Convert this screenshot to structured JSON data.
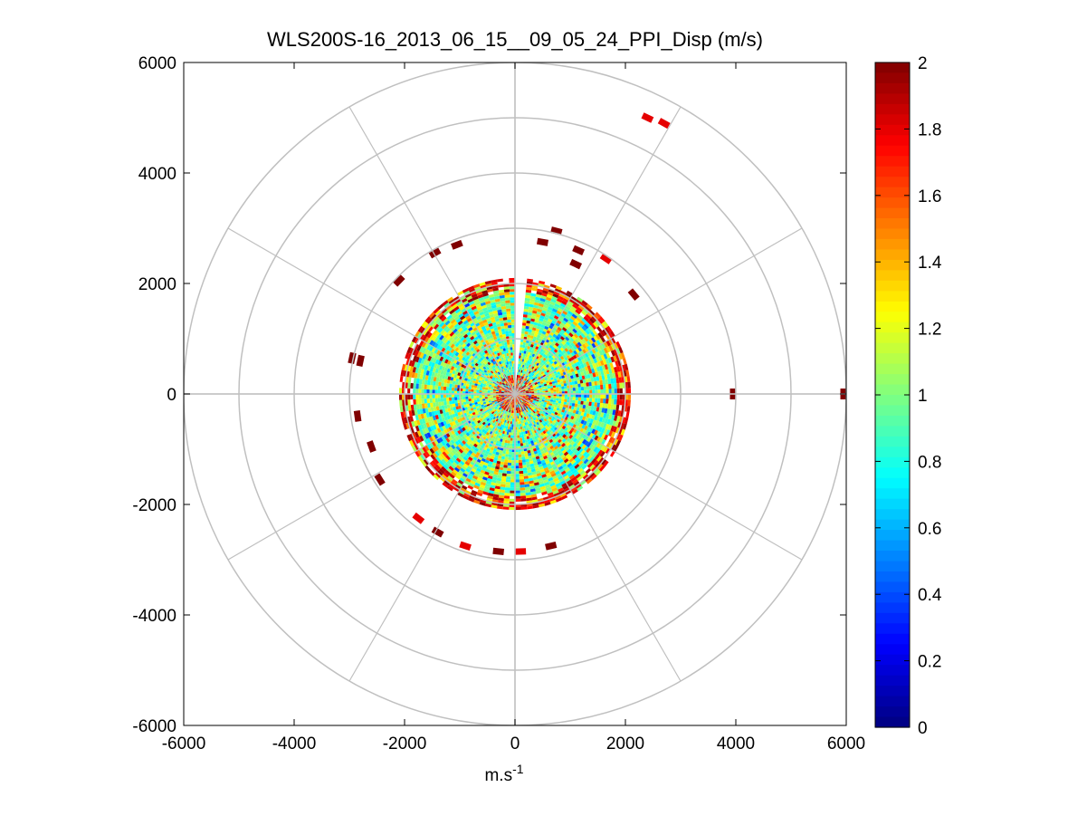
{
  "chart_data": {
    "type": "heatmap",
    "subtype": "polar-ppi-scan",
    "title": "WLS200S-16_2013_06_15__09_05_24_PPI_Disp (m/s)",
    "xlabel": {
      "base": "m.s",
      "sup": "-1"
    },
    "ylabel": "",
    "xlim": [
      -6000,
      6000
    ],
    "ylim": [
      -6000,
      6000
    ],
    "xticks": [
      "-6000",
      "-4000",
      "-2000",
      "0",
      "2000",
      "4000",
      "6000"
    ],
    "yticks": [
      "6000",
      "4000",
      "2000",
      "0",
      "-2000",
      "-4000",
      "-6000"
    ],
    "grid": true,
    "polar_grid": {
      "ring_radii": [
        1000,
        2000,
        3000,
        4000,
        5000,
        6000
      ],
      "spoke_angles_deg": [
        0,
        30,
        60,
        90,
        120,
        150,
        180,
        210,
        240,
        270,
        300,
        330
      ]
    },
    "colorbar": {
      "position": "right",
      "colormap": "jet",
      "range": [
        0,
        2
      ],
      "ticks": [
        "2",
        "1.8",
        "1.6",
        "1.4",
        "1.2",
        "1",
        "0.8",
        "0.6",
        "0.4",
        "0.2",
        "0"
      ]
    },
    "data_disk_radius": 2100,
    "data_gap_azimuth_deg": [
      0,
      6
    ],
    "scattered_cells": [
      {
        "x": 2400,
        "y": 5000,
        "value": 1.8
      },
      {
        "x": 2700,
        "y": 4900,
        "value": 1.8
      },
      {
        "x": 750,
        "y": 2950,
        "value": 2.0
      },
      {
        "x": 500,
        "y": 2750,
        "value": 2.0
      },
      {
        "x": 1150,
        "y": 2600,
        "value": 2.0
      },
      {
        "x": 1650,
        "y": 2450,
        "value": 1.8
      },
      {
        "x": 1100,
        "y": 2350,
        "value": 2.0
      },
      {
        "x": 2150,
        "y": 1800,
        "value": 2.0
      },
      {
        "x": -1050,
        "y": 2700,
        "value": 2.0
      },
      {
        "x": -1450,
        "y": 2550,
        "value": 2.0
      },
      {
        "x": -2100,
        "y": 2050,
        "value": 2.0
      },
      {
        "x": -2950,
        "y": 650,
        "value": 2.0
      },
      {
        "x": -2800,
        "y": 600,
        "value": 2.0
      },
      {
        "x": -2850,
        "y": -400,
        "value": 2.0
      },
      {
        "x": -2600,
        "y": -950,
        "value": 2.0
      },
      {
        "x": -2450,
        "y": -1550,
        "value": 2.0
      },
      {
        "x": -1750,
        "y": -2250,
        "value": 1.8
      },
      {
        "x": -1400,
        "y": -2500,
        "value": 2.0
      },
      {
        "x": -900,
        "y": -2750,
        "value": 1.8
      },
      {
        "x": -300,
        "y": -2850,
        "value": 2.0
      },
      {
        "x": 100,
        "y": -2850,
        "value": 1.8
      },
      {
        "x": 650,
        "y": -2750,
        "value": 2.0
      },
      {
        "x": 3950,
        "y": 0,
        "value": 2.0
      },
      {
        "x": 5950,
        "y": 0,
        "value": 2.0
      }
    ]
  }
}
